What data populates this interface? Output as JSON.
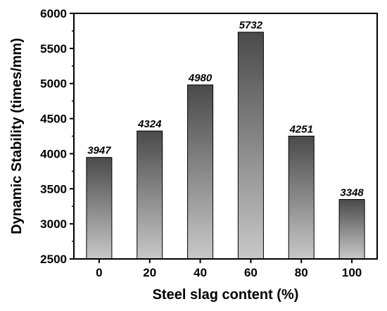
{
  "chart_data": {
    "type": "bar",
    "categories": [
      "0",
      "20",
      "40",
      "60",
      "80",
      "100"
    ],
    "values": [
      3947,
      4324,
      4980,
      5732,
      4251,
      3348
    ],
    "data_labels": [
      "3947",
      "4324",
      "4980",
      "5732",
      "4251",
      "3348"
    ],
    "xlabel": "Steel slag content (%)",
    "ylabel": "Dynamic Stability (times/mm)",
    "ylim": [
      2500,
      6000
    ],
    "yticks": [
      2500,
      3000,
      3500,
      4000,
      4500,
      5000,
      5500,
      6000
    ],
    "ytick_labels": [
      "2500",
      "3000",
      "3500",
      "4000",
      "4500",
      "5000",
      "5500",
      "6000"
    ],
    "grid": false,
    "legend": "none",
    "bar_gradient": {
      "top": "#4a4a4a",
      "bottom": "#c8c8c8"
    }
  }
}
